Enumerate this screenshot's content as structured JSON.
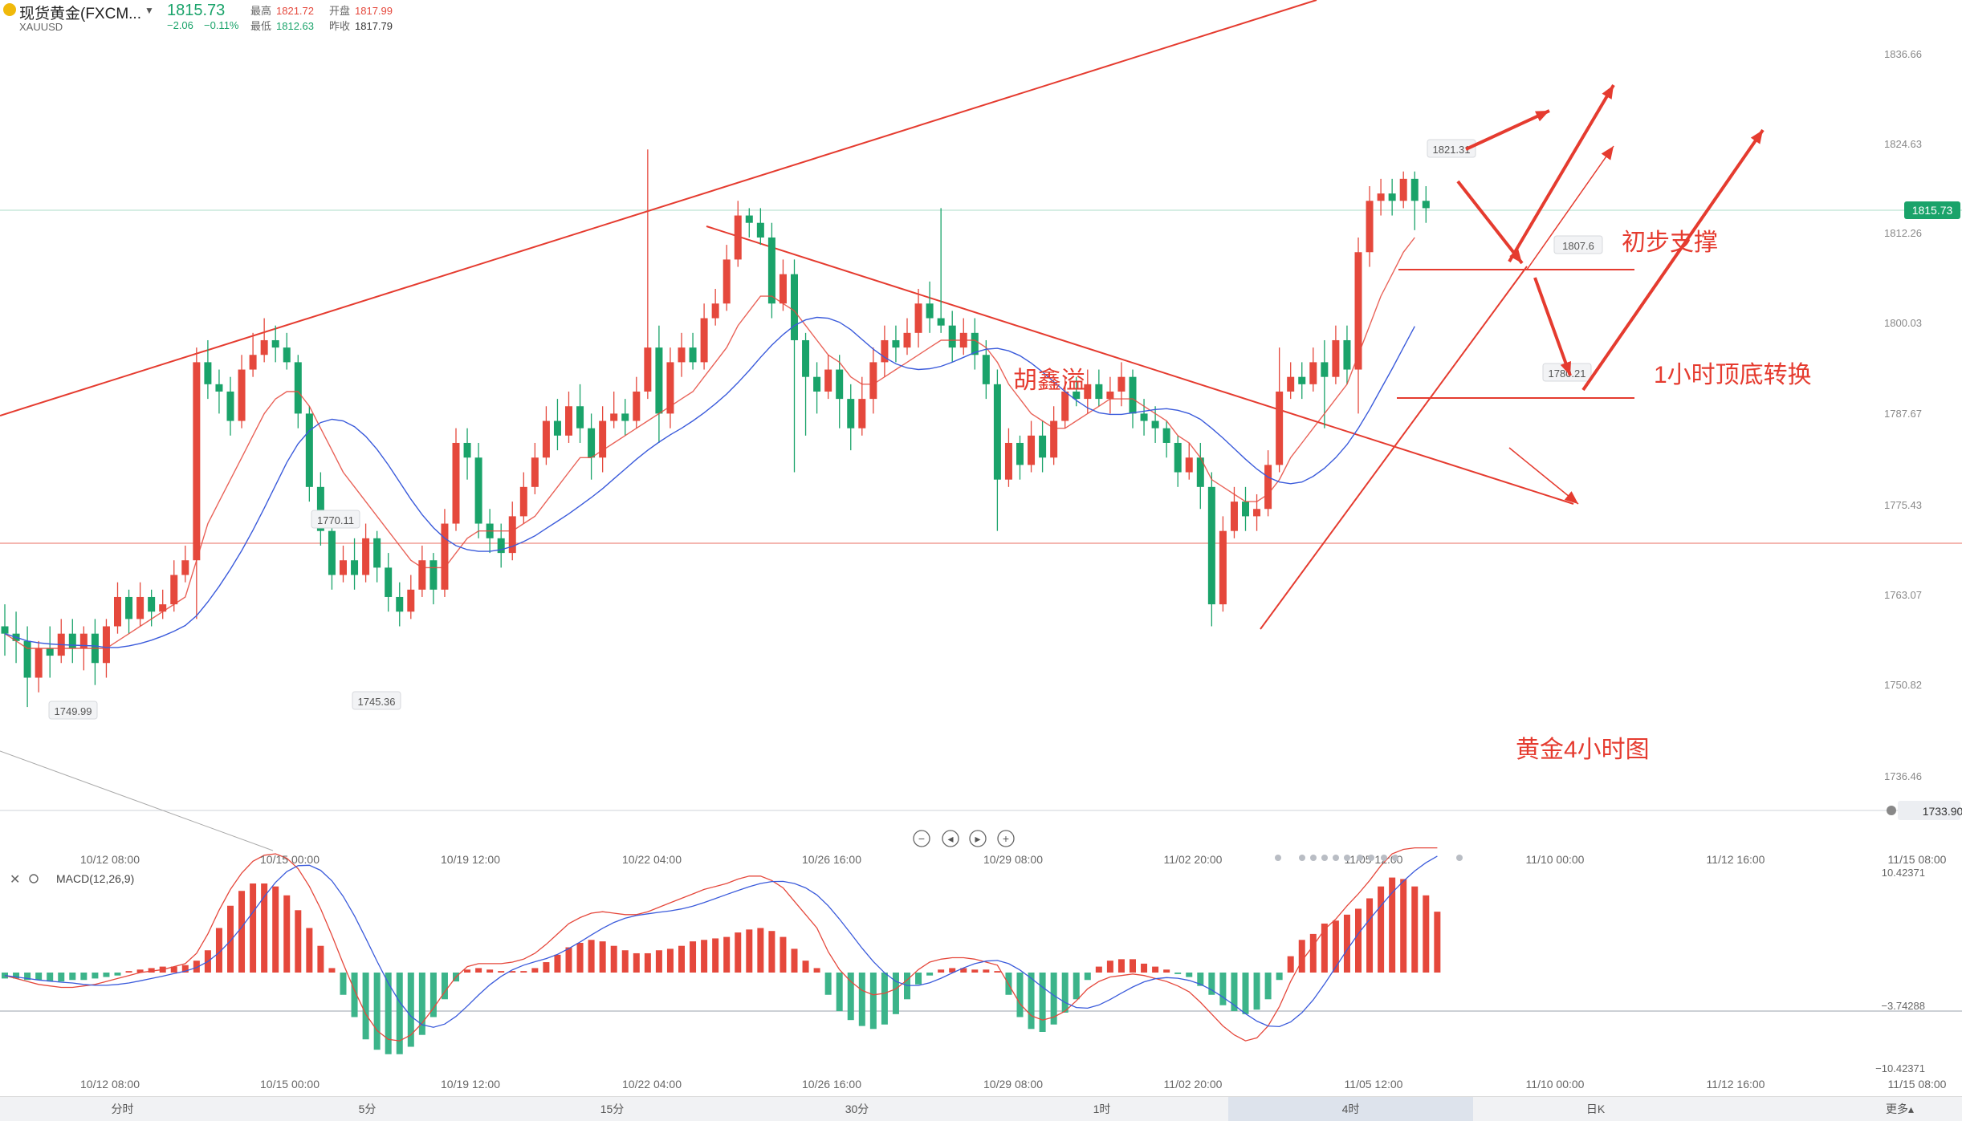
{
  "header": {
    "symbol": "现货黄金(FXCM...",
    "ticker": "XAUUSD",
    "price": "1815.73",
    "change": "−2.06",
    "change_pct": "−0.11%",
    "high_label": "最高",
    "high": "1821.72",
    "open_label": "开盘",
    "open": "1817.99",
    "low_label": "最低",
    "low": "1812.63",
    "prev_label": "昨收",
    "prev": "1817.79"
  },
  "colors": {
    "up": "#e5483c",
    "down": "#1aa36a",
    "ma_short": "#e5483c",
    "ma_long": "#3b5bdb",
    "annot": "#e53b2f"
  },
  "chart_data": [
    {
      "type": "candlestick",
      "title": "",
      "y_ticks": [
        "1836.66",
        "1824.63",
        "1812.26",
        "1800.03",
        "1787.67",
        "1775.43",
        "1763.07",
        "1750.82",
        "1736.46"
      ],
      "ylim": [
        1733.9,
        1840
      ],
      "x_ticks": [
        "10/12 08:00",
        "10/15 00:00",
        "10/19 12:00",
        "10/22 04:00",
        "10/26 16:00",
        "10/29 08:00",
        "11/02 20:00",
        "11/05 12:00",
        "11/10 00:00",
        "11/12 16:00",
        "11/15 08:00"
      ],
      "current_price_label": "1815.73",
      "bottom_price_label": "1733.90",
      "marker_labels": [
        "1821.31",
        "1807.6",
        "1780.21",
        "1770.11",
        "1749.99",
        "1745.36"
      ],
      "annotations": [
        "初步支撑",
        "1小时顶底转换",
        "胡鑫溢",
        "黄金4小时图"
      ],
      "candles": [
        [
          1759,
          1758,
          1762,
          1755
        ],
        [
          1758,
          1757,
          1761,
          1754
        ],
        [
          1757,
          1752,
          1759,
          1748
        ],
        [
          1752,
          1756,
          1757,
          1750
        ],
        [
          1756,
          1755,
          1759,
          1752
        ],
        [
          1755,
          1758,
          1760,
          1754
        ],
        [
          1758,
          1756,
          1760,
          1754
        ],
        [
          1756,
          1758,
          1759,
          1753
        ],
        [
          1758,
          1754,
          1760,
          1751
        ],
        [
          1754,
          1759,
          1760,
          1752
        ],
        [
          1759,
          1763,
          1765,
          1758
        ],
        [
          1763,
          1760,
          1764,
          1758
        ],
        [
          1760,
          1763,
          1765,
          1759
        ],
        [
          1763,
          1761,
          1764,
          1759
        ],
        [
          1761,
          1762,
          1764,
          1760
        ],
        [
          1762,
          1766,
          1768,
          1761
        ],
        [
          1766,
          1768,
          1770,
          1765
        ],
        [
          1768,
          1795,
          1797,
          1760
        ],
        [
          1795,
          1792,
          1798,
          1790
        ],
        [
          1792,
          1791,
          1794,
          1788
        ],
        [
          1791,
          1787,
          1793,
          1785
        ],
        [
          1787,
          1794,
          1796,
          1786
        ],
        [
          1794,
          1796,
          1799,
          1793
        ],
        [
          1796,
          1798,
          1801,
          1795
        ],
        [
          1798,
          1797,
          1800,
          1795
        ],
        [
          1797,
          1795,
          1799,
          1794
        ],
        [
          1795,
          1788,
          1796,
          1786
        ],
        [
          1788,
          1778,
          1789,
          1776
        ],
        [
          1778,
          1772,
          1780,
          1770
        ],
        [
          1772,
          1766,
          1774,
          1764
        ],
        [
          1766,
          1768,
          1770,
          1765
        ],
        [
          1768,
          1766,
          1771,
          1764
        ],
        [
          1766,
          1771,
          1773,
          1765
        ],
        [
          1771,
          1767,
          1772,
          1765
        ],
        [
          1767,
          1763,
          1769,
          1761
        ],
        [
          1763,
          1761,
          1765,
          1759
        ],
        [
          1761,
          1764,
          1766,
          1760
        ],
        [
          1764,
          1768,
          1770,
          1763
        ],
        [
          1768,
          1764,
          1769,
          1762
        ],
        [
          1764,
          1773,
          1775,
          1763
        ],
        [
          1773,
          1784,
          1786,
          1772
        ],
        [
          1784,
          1782,
          1786,
          1779
        ],
        [
          1782,
          1773,
          1784,
          1771
        ],
        [
          1773,
          1771,
          1775,
          1769
        ],
        [
          1771,
          1769,
          1773,
          1767
        ],
        [
          1769,
          1774,
          1776,
          1768
        ],
        [
          1774,
          1778,
          1780,
          1773
        ],
        [
          1778,
          1782,
          1784,
          1777
        ],
        [
          1782,
          1787,
          1789,
          1781
        ],
        [
          1787,
          1785,
          1790,
          1783
        ],
        [
          1785,
          1789,
          1791,
          1784
        ],
        [
          1789,
          1786,
          1792,
          1784
        ],
        [
          1786,
          1782,
          1788,
          1779
        ],
        [
          1782,
          1787,
          1789,
          1780
        ],
        [
          1787,
          1788,
          1791,
          1786
        ],
        [
          1788,
          1787,
          1790,
          1785
        ],
        [
          1787,
          1791,
          1793,
          1786
        ],
        [
          1791,
          1797,
          1824,
          1790
        ],
        [
          1797,
          1788,
          1800,
          1784
        ],
        [
          1788,
          1795,
          1797,
          1786
        ],
        [
          1795,
          1797,
          1799,
          1793
        ],
        [
          1797,
          1795,
          1799,
          1794
        ],
        [
          1795,
          1801,
          1803,
          1794
        ],
        [
          1801,
          1803,
          1805,
          1800
        ],
        [
          1803,
          1809,
          1811,
          1802
        ],
        [
          1809,
          1815,
          1817,
          1808
        ],
        [
          1815,
          1814,
          1816,
          1812
        ],
        [
          1814,
          1812,
          1816,
          1811
        ],
        [
          1812,
          1803,
          1814,
          1801
        ],
        [
          1803,
          1807,
          1809,
          1802
        ],
        [
          1807,
          1798,
          1809,
          1780
        ],
        [
          1798,
          1793,
          1799,
          1785
        ],
        [
          1793,
          1791,
          1795,
          1788
        ],
        [
          1791,
          1794,
          1796,
          1790
        ],
        [
          1794,
          1790,
          1796,
          1786
        ],
        [
          1790,
          1786,
          1792,
          1783
        ],
        [
          1786,
          1790,
          1793,
          1785
        ],
        [
          1790,
          1795,
          1797,
          1788
        ],
        [
          1795,
          1798,
          1800,
          1793
        ],
        [
          1798,
          1797,
          1800,
          1795
        ],
        [
          1797,
          1799,
          1801,
          1796
        ],
        [
          1799,
          1803,
          1805,
          1797
        ],
        [
          1803,
          1801,
          1806,
          1799
        ],
        [
          1801,
          1800,
          1816,
          1799
        ],
        [
          1800,
          1797,
          1802,
          1795
        ],
        [
          1797,
          1799,
          1801,
          1796
        ],
        [
          1799,
          1796,
          1801,
          1794
        ],
        [
          1796,
          1792,
          1798,
          1790
        ],
        [
          1792,
          1779,
          1794,
          1772
        ],
        [
          1779,
          1784,
          1786,
          1778
        ],
        [
          1784,
          1781,
          1785,
          1779
        ],
        [
          1781,
          1785,
          1787,
          1780
        ],
        [
          1785,
          1782,
          1787,
          1780
        ],
        [
          1782,
          1787,
          1789,
          1781
        ],
        [
          1787,
          1791,
          1793,
          1786
        ],
        [
          1791,
          1790,
          1793,
          1789
        ],
        [
          1790,
          1792,
          1794,
          1788
        ],
        [
          1792,
          1790,
          1794,
          1789
        ],
        [
          1790,
          1791,
          1793,
          1788
        ],
        [
          1791,
          1793,
          1795,
          1789
        ],
        [
          1793,
          1788,
          1794,
          1786
        ],
        [
          1788,
          1787,
          1790,
          1785
        ],
        [
          1787,
          1786,
          1789,
          1784
        ],
        [
          1786,
          1784,
          1787,
          1782
        ],
        [
          1784,
          1780,
          1785,
          1778
        ],
        [
          1780,
          1782,
          1784,
          1779
        ],
        [
          1782,
          1778,
          1784,
          1775
        ],
        [
          1778,
          1762,
          1780,
          1759
        ],
        [
          1762,
          1772,
          1774,
          1761
        ],
        [
          1772,
          1776,
          1778,
          1771
        ],
        [
          1776,
          1774,
          1778,
          1772
        ],
        [
          1774,
          1775,
          1777,
          1772
        ],
        [
          1775,
          1781,
          1783,
          1774
        ],
        [
          1781,
          1791,
          1797,
          1780
        ],
        [
          1791,
          1793,
          1795,
          1790
        ],
        [
          1793,
          1792,
          1795,
          1790
        ],
        [
          1792,
          1795,
          1797,
          1791
        ],
        [
          1795,
          1793,
          1798,
          1786
        ],
        [
          1793,
          1798,
          1800,
          1792
        ],
        [
          1798,
          1794,
          1800,
          1792
        ],
        [
          1794,
          1810,
          1812,
          1788
        ],
        [
          1810,
          1817,
          1819,
          1808
        ],
        [
          1817,
          1818,
          1820,
          1815
        ],
        [
          1818,
          1817,
          1820,
          1815
        ],
        [
          1817,
          1820,
          1821,
          1816
        ],
        [
          1820,
          1817,
          1821,
          1813
        ],
        [
          1817,
          1816,
          1819,
          1814
        ]
      ],
      "ma_short": [
        1758,
        1757,
        1756,
        1756,
        1756,
        1756,
        1756,
        1756,
        1756,
        1756,
        1757,
        1758,
        1759,
        1760,
        1761,
        1762,
        1763,
        1768,
        1773,
        1776,
        1779,
        1782,
        1785,
        1788,
        1790,
        1791,
        1791,
        1789,
        1786,
        1783,
        1780,
        1778,
        1776,
        1774,
        1772,
        1770,
        1768,
        1767,
        1767,
        1767,
        1769,
        1771,
        1772,
        1772,
        1772,
        1772,
        1773,
        1774,
        1776,
        1778,
        1780,
        1782,
        1782,
        1783,
        1784,
        1785,
        1786,
        1787,
        1788,
        1789,
        1790,
        1791,
        1793,
        1795,
        1797,
        1800,
        1802,
        1804,
        1804,
        1803,
        1802,
        1800,
        1798,
        1796,
        1795,
        1793,
        1792,
        1792,
        1793,
        1794,
        1795,
        1796,
        1797,
        1798,
        1798,
        1798,
        1798,
        1797,
        1795,
        1792,
        1790,
        1788,
        1787,
        1786,
        1786,
        1787,
        1788,
        1789,
        1790,
        1790,
        1790,
        1789,
        1788,
        1787,
        1785,
        1784,
        1782,
        1779,
        1778,
        1777,
        1776,
        1776,
        1777,
        1779,
        1782,
        1784,
        1786,
        1788,
        1790,
        1792,
        1796,
        1800,
        1804,
        1807,
        1810,
        1812
      ]
    },
    {
      "type": "bar",
      "title": "MACD(12,26,9)",
      "y_ticks": [
        "10.42371",
        "−3.74288",
        "−10.42371"
      ],
      "ylim": [
        -10.42371,
        10.42371
      ],
      "x_ticks": [
        "10/12 08:00",
        "10/15 00:00",
        "10/19 12:00",
        "10/22 04:00",
        "10/26 16:00",
        "10/29 08:00",
        "11/02 20:00",
        "11/05 12:00",
        "11/10 00:00",
        "11/12 16:00",
        "11/15 08:00"
      ],
      "histogram": [
        -0.4,
        -0.4,
        -0.5,
        -0.5,
        -0.6,
        -0.6,
        -0.5,
        -0.5,
        -0.4,
        -0.3,
        -0.2,
        0.1,
        0.2,
        0.3,
        0.4,
        0.4,
        0.5,
        0.8,
        1.5,
        3,
        4.5,
        5.5,
        6,
        6,
        5.8,
        5.2,
        4.2,
        3,
        1.8,
        0.3,
        -1.5,
        -3,
        -4.5,
        -5.2,
        -5.5,
        -5.5,
        -5,
        -4.2,
        -3,
        -1.8,
        -0.6,
        0.2,
        0.3,
        0.2,
        0.1,
        0.1,
        0.1,
        0.3,
        0.7,
        1.2,
        1.7,
        2,
        2.2,
        2.1,
        1.8,
        1.5,
        1.3,
        1.3,
        1.5,
        1.6,
        1.8,
        2.1,
        2.2,
        2.3,
        2.4,
        2.7,
        2.9,
        3,
        2.8,
        2.4,
        1.6,
        0.8,
        0.3,
        -1.5,
        -2.6,
        -3.2,
        -3.6,
        -3.8,
        -3.5,
        -2.8,
        -1.8,
        -0.8,
        -0.2,
        0.2,
        0.3,
        0.3,
        0.2,
        0.2,
        0.1,
        -1.5,
        -3,
        -3.8,
        -4,
        -3.5,
        -2.7,
        -1.8,
        -0.5,
        0.4,
        0.8,
        0.9,
        0.9,
        0.6,
        0.4,
        0.2,
        -0.1,
        -0.3,
        -0.9,
        -1.5,
        -2.2,
        -2.6,
        -2.8,
        -2.5,
        -1.8,
        -0.5,
        1.1,
        2.2,
        2.6,
        3.3,
        3.5,
        3.9,
        4.3,
        5,
        5.8,
        6.4,
        6.3,
        5.8,
        5.2,
        4.1
      ],
      "dif": [
        -0.2,
        -0.4,
        -0.6,
        -0.8,
        -0.9,
        -1,
        -1,
        -0.9,
        -0.8,
        -0.6,
        -0.4,
        -0.2,
        0,
        0.1,
        0.2,
        0.4,
        0.6,
        1.3,
        2.6,
        4.2,
        5.6,
        6.7,
        7.5,
        7.9,
        8,
        7.7,
        7,
        5.8,
        4.3,
        2.5,
        0.6,
        -1.2,
        -2.8,
        -3.9,
        -4.5,
        -4.6,
        -4.2,
        -3.4,
        -2.4,
        -1.3,
        -0.3,
        0.4,
        0.6,
        0.6,
        0.6,
        0.7,
        0.9,
        1.3,
        1.9,
        2.6,
        3.3,
        3.7,
        4,
        4.1,
        4,
        3.9,
        3.9,
        4.1,
        4.4,
        4.7,
        5,
        5.3,
        5.6,
        5.8,
        6,
        6.3,
        6.5,
        6.5,
        6.2,
        5.7,
        4.8,
        3.9,
        3,
        1.4,
        0.2,
        -0.6,
        -1.2,
        -1.5,
        -1.4,
        -1.1,
        -0.5,
        0.2,
        0.7,
        0.9,
        1,
        1,
        0.9,
        0.7,
        0.5,
        -0.8,
        -2.1,
        -2.9,
        -3.2,
        -3,
        -2.6,
        -1.9,
        -1.1,
        -0.6,
        -0.3,
        -0.2,
        -0.1,
        -0.2,
        -0.4,
        -0.6,
        -0.9,
        -1.3,
        -2,
        -2.8,
        -3.6,
        -4.2,
        -4.6,
        -4.4,
        -3.6,
        -2.3,
        -0.6,
        0.8,
        1.8,
        2.9,
        3.6,
        4.5,
        5.3,
        6.2,
        7.2,
        8,
        8.3,
        8.4,
        8.4,
        8.4
      ]
    }
  ],
  "toolbar": {
    "zoom_out": "−",
    "prev": "◂",
    "next": "▸",
    "zoom_in": "+"
  },
  "indicator": {
    "name": "MACD(12,26,9)"
  },
  "tabs": {
    "active_index": 5,
    "items": [
      "分时",
      "5分",
      "15分",
      "30分",
      "1时",
      "4时",
      "日K",
      "更多▴"
    ]
  }
}
